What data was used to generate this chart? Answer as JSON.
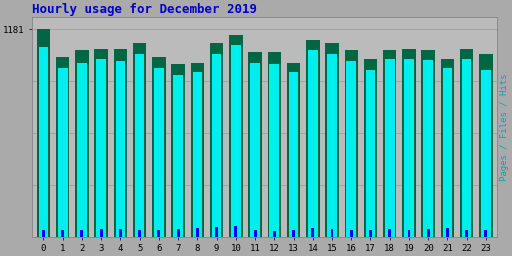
{
  "title": "Hourly usage for December 2019",
  "title_color": "#0000cc",
  "title_fontsize": 9,
  "ylabel_right": "Pages / Files / Hits",
  "ylabel_right_color": "#00aaaa",
  "hours": [
    0,
    1,
    2,
    3,
    4,
    5,
    6,
    7,
    8,
    9,
    10,
    11,
    12,
    13,
    14,
    15,
    16,
    17,
    18,
    19,
    20,
    21,
    22,
    23
  ],
  "pages": [
    1181,
    1020,
    1060,
    1070,
    1070,
    1100,
    1020,
    980,
    990,
    1100,
    1150,
    1050,
    1050,
    990,
    1120,
    1100,
    1060,
    1010,
    1060,
    1070,
    1060,
    1010,
    1070,
    1040
  ],
  "files": [
    1080,
    960,
    990,
    1010,
    1000,
    1040,
    960,
    920,
    935,
    1040,
    1090,
    990,
    985,
    935,
    1060,
    1040,
    1000,
    950,
    1010,
    1010,
    1005,
    960,
    1010,
    950
  ],
  "hits": [
    40,
    35,
    38,
    45,
    42,
    38,
    38,
    42,
    48,
    52,
    60,
    38,
    32,
    38,
    50,
    42,
    38,
    35,
    45,
    40,
    42,
    48,
    38,
    35
  ],
  "pages_bar_width": 0.7,
  "files_bar_width": 0.5,
  "hits_bar_width": 0.15,
  "colors": {
    "pages": "#006644",
    "files": "#00eeee",
    "hits": "#0000ff"
  },
  "bg_color": "#aaaaaa",
  "plot_bg_color": "#bbbbbb",
  "ymax": 1250,
  "ymin": 0,
  "yticks": [
    1181
  ],
  "ytick_labels": [
    "1181"
  ],
  "grid_color": "#999999",
  "grid_levels": [
    295,
    590,
    885,
    1181
  ]
}
